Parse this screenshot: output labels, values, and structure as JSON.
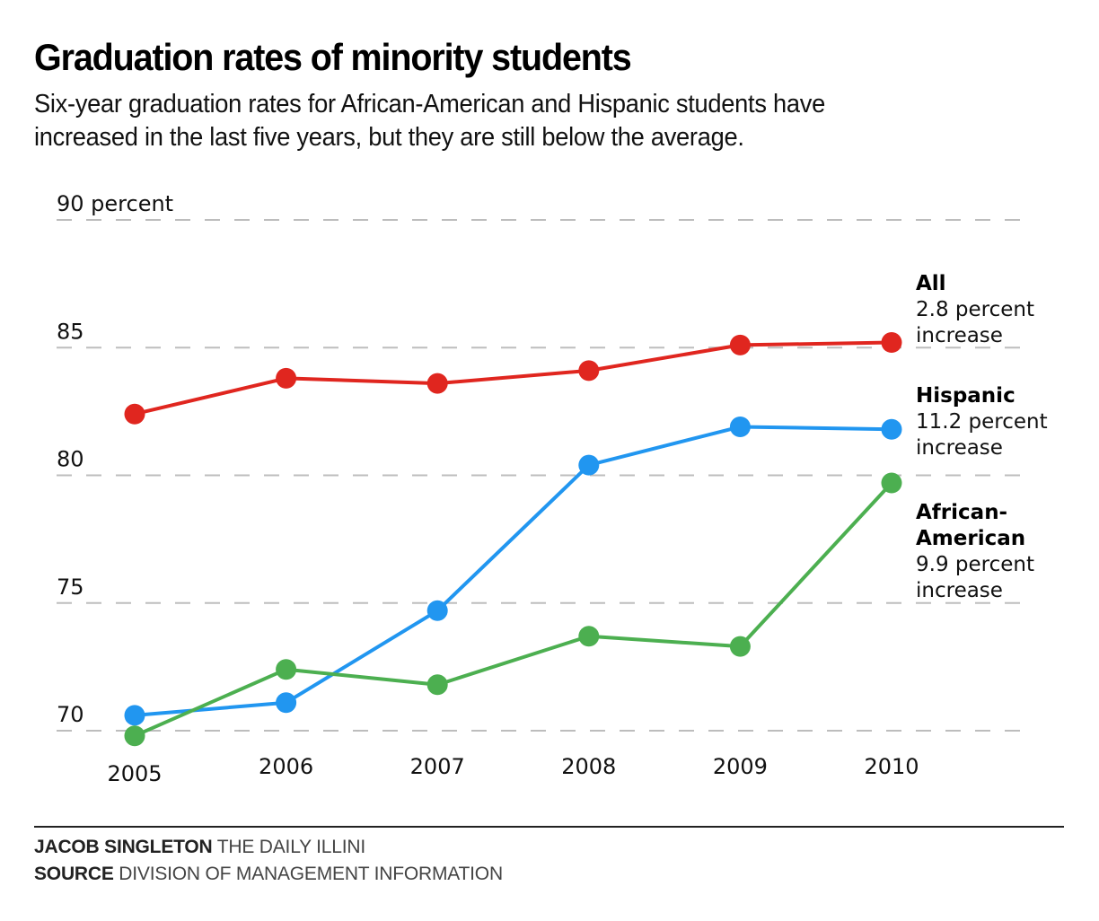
{
  "header": {
    "title": "Graduation rates of minority students",
    "subtitle_lines": [
      "Six-year graduation rates for African-American and Hispanic students have",
      "increased in the last five years, but they are still below the average."
    ]
  },
  "footer": {
    "credit_name": "JACOB SINGLETON",
    "credit_org": "THE DAILY ILLINI",
    "source_label": "SOURCE",
    "source_value": "DIVISION OF MANAGEMENT INFORMATION"
  },
  "chart_data": {
    "type": "line",
    "title": "Graduation rates of minority students",
    "subtitle": "Six-year graduation rates for African-American and Hispanic students have increased in the last five years, but they are still below the average.",
    "xlabel": "",
    "ylabel": "percent",
    "x": [
      "2005",
      "2006",
      "2007",
      "2008",
      "2009",
      "2010"
    ],
    "ylim": [
      70,
      90
    ],
    "yticks": [
      70,
      75,
      80,
      85,
      90
    ],
    "ytick_labels": [
      "70",
      "75",
      "80",
      "85",
      "90 percent"
    ],
    "grid": true,
    "grid_style": "dashed-horizontal",
    "legend": "direct-labels-right",
    "series": [
      {
        "name": "All",
        "note_lines": [
          "2.8 percent",
          "increase"
        ],
        "color": "#e0261f",
        "values": [
          82.4,
          83.8,
          83.6,
          84.1,
          85.1,
          85.2
        ]
      },
      {
        "name": "Hispanic",
        "note_lines": [
          "11.2 percent",
          "increase"
        ],
        "color": "#2196f0",
        "values": [
          70.6,
          71.1,
          74.7,
          80.4,
          81.9,
          81.8
        ]
      },
      {
        "name": "African-American",
        "name_lines": [
          "African-",
          "American"
        ],
        "note_lines": [
          "9.9 percent",
          "increase"
        ],
        "color": "#4caf50",
        "values": [
          69.8,
          72.4,
          71.8,
          73.7,
          73.3,
          79.7
        ]
      }
    ]
  }
}
